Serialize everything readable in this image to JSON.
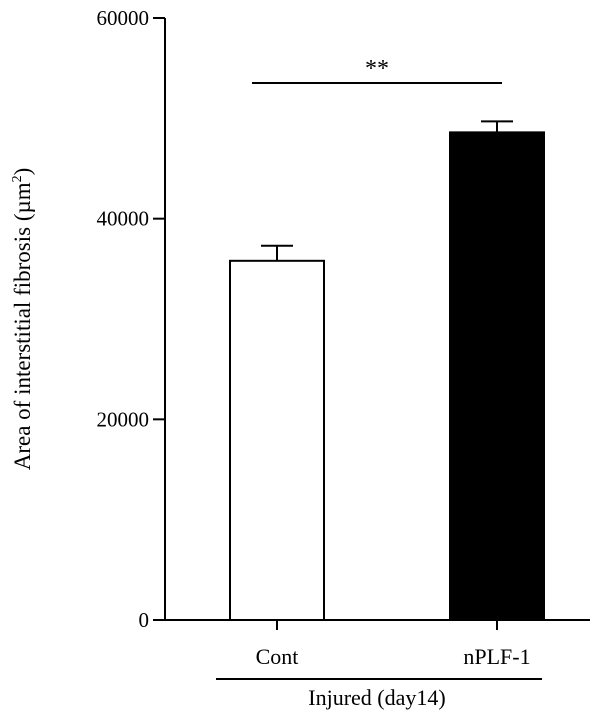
{
  "chart_data": {
    "type": "bar",
    "categories": [
      "Cont",
      "nPLF-1"
    ],
    "values": [
      35800,
      48600
    ],
    "errors": [
      1500,
      1100
    ],
    "bar_fills": [
      "#ffffff",
      "#000000"
    ],
    "ylim": [
      0,
      60000
    ],
    "yticks": [
      0,
      20000,
      40000,
      60000
    ],
    "ytick_labels": [
      "0",
      "20000",
      "40000",
      "60000"
    ],
    "ylabel": "Area of interstitial fibrosis (µm",
    "ylabel_sup": "2",
    "ylabel_close": ")",
    "group_label": "Injured (day14)",
    "significance": "**",
    "grid": false
  }
}
